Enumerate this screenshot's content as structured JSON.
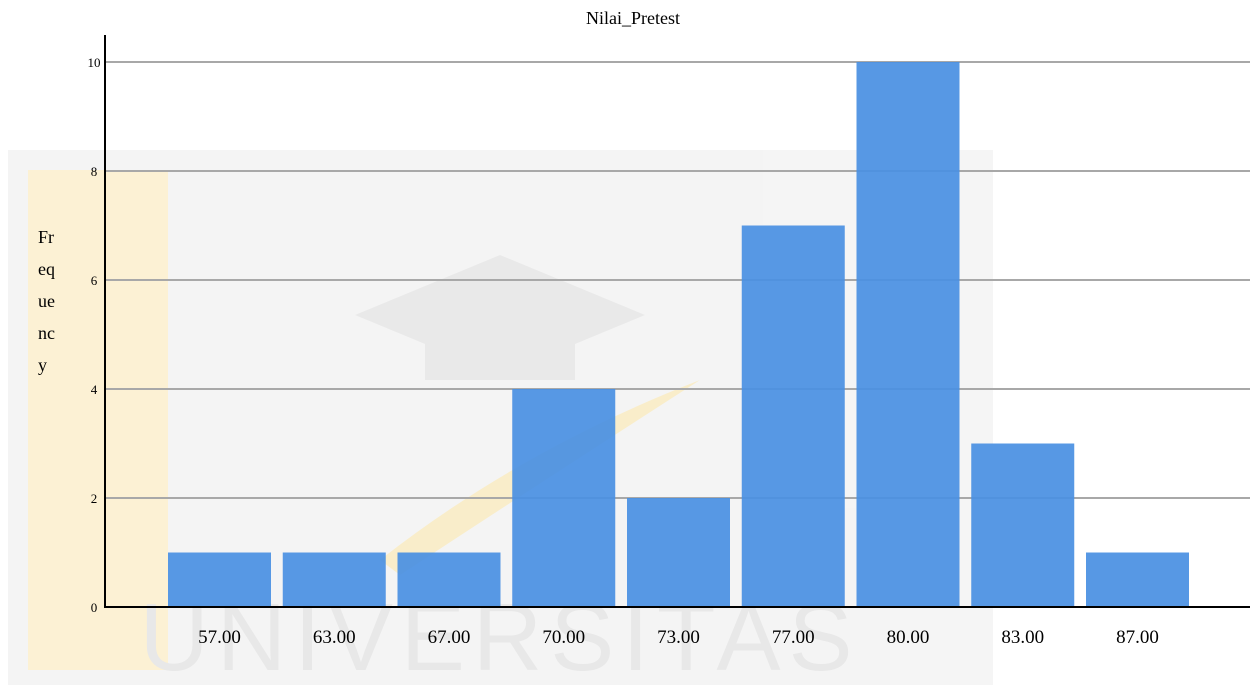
{
  "chart_data": {
    "type": "bar",
    "title": "Nilai_Pretest",
    "xlabel": "",
    "ylabel": "Frequency",
    "ylabel_lines": [
      "Fr",
      "eq",
      "ue",
      "nc",
      "y"
    ],
    "categories": [
      "57.00",
      "63.00",
      "67.00",
      "70.00",
      "73.00",
      "77.00",
      "80.00",
      "83.00",
      "87.00"
    ],
    "values": [
      1,
      1,
      1,
      4,
      2,
      7,
      10,
      3,
      1
    ],
    "ylim": [
      0,
      10
    ],
    "yticks": [
      0,
      2,
      4,
      6,
      8,
      10
    ],
    "grid": true,
    "bar_color": "#4a90e2"
  },
  "watermark": {
    "text": "UNIVERSITAS",
    "color": "#e8e8e8",
    "accent_color": "#f6d78a"
  }
}
